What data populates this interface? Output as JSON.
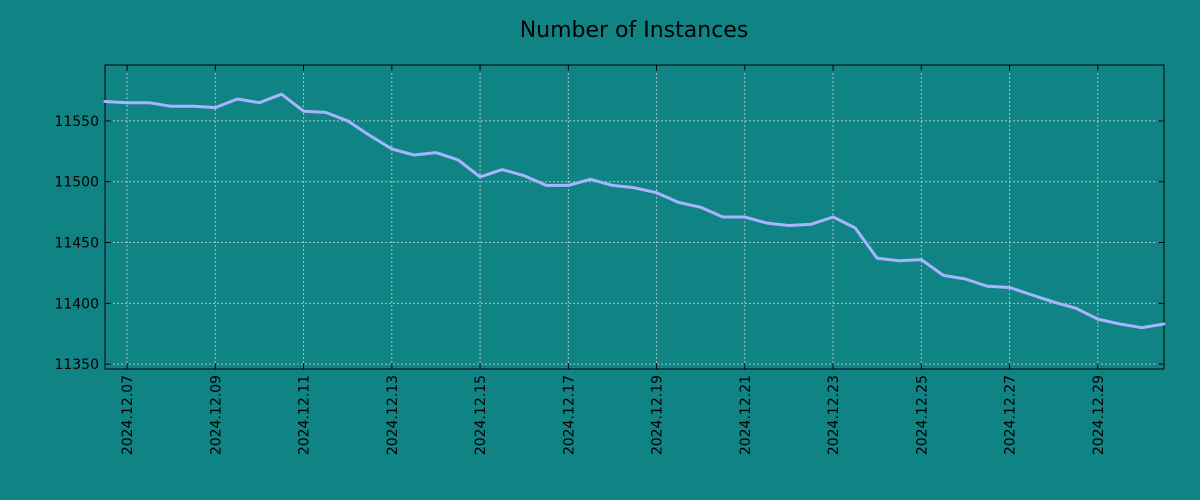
{
  "colors": {
    "background": "#108385",
    "line": "#a8b4ff",
    "axis": "#000000",
    "grid": "#a0c8c8"
  },
  "chart_data": {
    "type": "line",
    "title": "Number of Instances",
    "xlabel": "",
    "ylabel": "",
    "ylim": [
      11346,
      11596
    ],
    "xlim": [
      "2024.12.06 12:00",
      "2024.12.30 12:00"
    ],
    "grid": true,
    "x_ticks": [
      "2024.12.07",
      "2024.12.09",
      "2024.12.11",
      "2024.12.13",
      "2024.12.15",
      "2024.12.17",
      "2024.12.19",
      "2024.12.21",
      "2024.12.23",
      "2024.12.25",
      "2024.12.27",
      "2024.12.29"
    ],
    "y_ticks": [
      11350,
      11400,
      11450,
      11500,
      11550
    ],
    "series": [
      {
        "x": [
          "2024.12.06 12:00",
          "2024.12.07 00:00",
          "2024.12.07 12:00",
          "2024.12.08 00:00",
          "2024.12.08 12:00",
          "2024.12.09 00:00",
          "2024.12.09 12:00",
          "2024.12.10 00:00",
          "2024.12.10 12:00",
          "2024.12.11 00:00",
          "2024.12.11 12:00",
          "2024.12.12 00:00",
          "2024.12.12 12:00",
          "2024.12.13 00:00",
          "2024.12.13 12:00",
          "2024.12.14 00:00",
          "2024.12.14 12:00",
          "2024.12.15 00:00",
          "2024.12.15 12:00",
          "2024.12.16 00:00",
          "2024.12.16 12:00",
          "2024.12.17 00:00",
          "2024.12.17 12:00",
          "2024.12.18 00:00",
          "2024.12.18 12:00",
          "2024.12.19 00:00",
          "2024.12.19 12:00",
          "2024.12.20 00:00",
          "2024.12.20 12:00",
          "2024.12.21 00:00",
          "2024.12.21 12:00",
          "2024.12.22 00:00",
          "2024.12.22 12:00",
          "2024.12.23 00:00",
          "2024.12.23 12:00",
          "2024.12.24 00:00",
          "2024.12.24 12:00",
          "2024.12.25 00:00",
          "2024.12.25 12:00",
          "2024.12.26 00:00",
          "2024.12.26 12:00",
          "2024.12.27 00:00",
          "2024.12.27 12:00",
          "2024.12.28 00:00",
          "2024.12.28 12:00",
          "2024.12.29 00:00",
          "2024.12.29 12:00",
          "2024.12.30 00:00",
          "2024.12.30 12:00"
        ],
        "values": [
          11566,
          11565,
          11565,
          11562,
          11562,
          11561,
          11568,
          11565,
          11572,
          11558,
          11557,
          11550,
          11538,
          11527,
          11522,
          11524,
          11518,
          11504,
          11510,
          11505,
          11497,
          11497,
          11502,
          11497,
          11495,
          11491,
          11483,
          11479,
          11471,
          11471,
          11466,
          11464,
          11465,
          11471,
          11462,
          11437,
          11435,
          11436,
          11423,
          11420,
          11414,
          11413,
          11407,
          11401,
          11396,
          11387,
          11383,
          11380,
          11383
        ]
      }
    ]
  }
}
